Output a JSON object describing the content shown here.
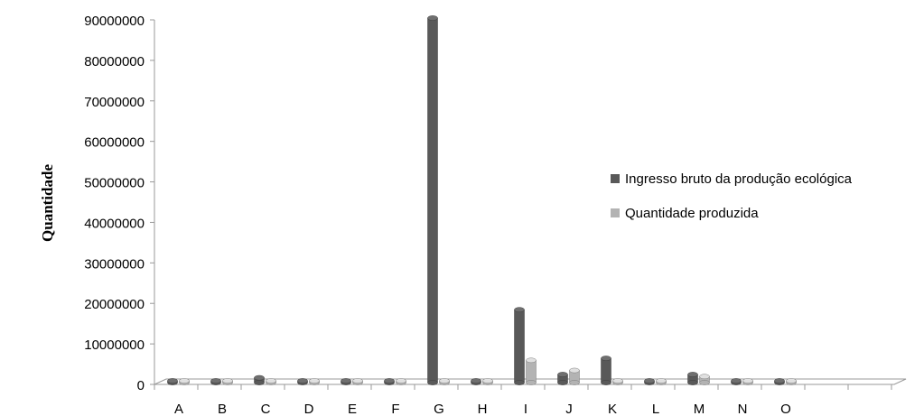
{
  "chart_data": {
    "type": "bar",
    "title": "",
    "xlabel": "",
    "ylabel": "Quantidade",
    "ylim": [
      0,
      90000000
    ],
    "yticks": [
      "0",
      "10000000",
      "20000000",
      "30000000",
      "40000000",
      "50000000",
      "60000000",
      "70000000",
      "80000000",
      "90000000"
    ],
    "categories": [
      "A",
      "B",
      "C",
      "D",
      "E",
      "F",
      "G",
      "H",
      "I",
      "J",
      "K",
      "L",
      "M",
      "N",
      "O"
    ],
    "series": [
      {
        "name": "Ingresso bruto da produção ecológica",
        "color": "#595959",
        "values": [
          150000,
          80000,
          1200000,
          60000,
          60000,
          60000,
          90000000,
          60000,
          18000000,
          2000000,
          6000000,
          80000,
          2000000,
          60000,
          60000
        ]
      },
      {
        "name": "Quantidade produzida",
        "color": "#b3b3b3",
        "values": [
          80000,
          60000,
          60000,
          60000,
          60000,
          60000,
          60000,
          60000,
          5500000,
          3000000,
          60000,
          200000,
          1500000,
          60000,
          60000
        ]
      }
    ],
    "legend_position": "right",
    "grid": false,
    "style": "3d-cylinder"
  }
}
